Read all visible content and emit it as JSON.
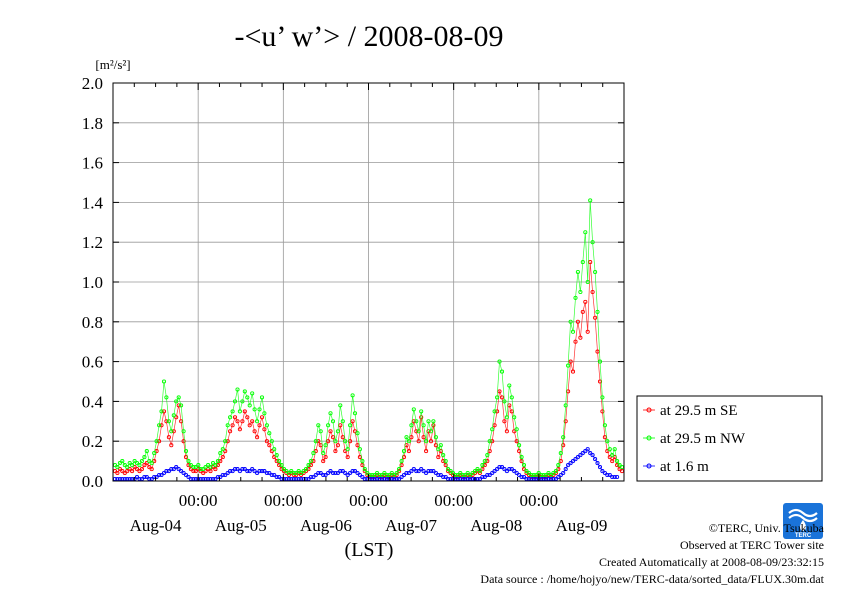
{
  "chart_data": {
    "type": "line",
    "title": "-<u’ w’> / 2008-08-09",
    "y_unit": "[m²/s²]",
    "ylim": [
      0.0,
      2.0
    ],
    "y_ticks": [
      "0.0",
      "0.2",
      "0.4",
      "0.6",
      "0.8",
      "1.0",
      "1.2",
      "1.4",
      "1.6",
      "1.8",
      "2.0"
    ],
    "x_tick_time": "00:00",
    "x_day_labels": [
      "Aug-04",
      "Aug-05",
      "Aug-06",
      "Aug-07",
      "Aug-08",
      "Aug-09"
    ],
    "xlabel": "(LST)",
    "grid": true,
    "legend_position": "right",
    "series": [
      {
        "name": "at 29.5 m SE",
        "color": "#ff0000",
        "values": [
          0.05,
          0.04,
          0.06,
          0.05,
          0.04,
          0.05,
          0.06,
          0.05,
          0.07,
          0.06,
          0.05,
          0.06,
          0.08,
          0.09,
          0.07,
          0.06,
          0.1,
          0.15,
          0.2,
          0.28,
          0.35,
          0.3,
          0.22,
          0.18,
          0.25,
          0.32,
          0.38,
          0.3,
          0.2,
          0.12,
          0.08,
          0.06,
          0.05,
          0.05,
          0.06,
          0.05,
          0.04,
          0.05,
          0.06,
          0.05,
          0.07,
          0.06,
          0.08,
          0.1,
          0.12,
          0.15,
          0.2,
          0.25,
          0.28,
          0.32,
          0.3,
          0.26,
          0.3,
          0.35,
          0.32,
          0.28,
          0.3,
          0.25,
          0.22,
          0.28,
          0.32,
          0.26,
          0.2,
          0.18,
          0.15,
          0.12,
          0.1,
          0.08,
          0.06,
          0.05,
          0.04,
          0.03,
          0.04,
          0.03,
          0.03,
          0.04,
          0.03,
          0.04,
          0.05,
          0.06,
          0.08,
          0.1,
          0.15,
          0.2,
          0.18,
          0.1,
          0.12,
          0.2,
          0.25,
          0.22,
          0.15,
          0.18,
          0.28,
          0.22,
          0.15,
          0.12,
          0.2,
          0.3,
          0.25,
          0.18,
          0.12,
          0.08,
          0.05,
          0.03,
          0.02,
          0.02,
          0.02,
          0.03,
          0.02,
          0.02,
          0.03,
          0.02,
          0.02,
          0.03,
          0.02,
          0.03,
          0.05,
          0.08,
          0.12,
          0.18,
          0.15,
          0.22,
          0.3,
          0.25,
          0.2,
          0.32,
          0.22,
          0.15,
          0.25,
          0.2,
          0.28,
          0.18,
          0.12,
          0.15,
          0.1,
          0.08,
          0.05,
          0.04,
          0.03,
          0.02,
          0.02,
          0.03,
          0.02,
          0.02,
          0.03,
          0.02,
          0.03,
          0.04,
          0.05,
          0.04,
          0.06,
          0.08,
          0.1,
          0.15,
          0.2,
          0.28,
          0.35,
          0.45,
          0.42,
          0.3,
          0.25,
          0.38,
          0.35,
          0.25,
          0.2,
          0.15,
          0.1,
          0.06,
          0.04,
          0.03,
          0.02,
          0.02,
          0.02,
          0.03,
          0.02,
          0.02,
          0.02,
          0.03,
          0.02,
          0.03,
          0.04,
          0.06,
          0.1,
          0.18,
          0.3,
          0.45,
          0.6,
          0.55,
          0.7,
          0.8,
          0.72,
          0.85,
          0.9,
          0.75,
          1.1,
          0.95,
          0.82,
          0.65,
          0.5,
          0.35,
          0.22,
          0.15,
          0.12,
          0.1,
          0.12,
          0.08,
          0.06,
          0.05
        ]
      },
      {
        "name": "at 29.5 m NW",
        "color": "#00ff00",
        "values": [
          0.08,
          0.07,
          0.09,
          0.1,
          0.08,
          0.07,
          0.09,
          0.08,
          0.1,
          0.09,
          0.08,
          0.1,
          0.12,
          0.15,
          0.1,
          0.09,
          0.14,
          0.2,
          0.28,
          0.35,
          0.5,
          0.42,
          0.3,
          0.25,
          0.33,
          0.4,
          0.42,
          0.38,
          0.25,
          0.15,
          0.1,
          0.08,
          0.07,
          0.07,
          0.08,
          0.06,
          0.06,
          0.07,
          0.08,
          0.07,
          0.09,
          0.08,
          0.1,
          0.14,
          0.16,
          0.2,
          0.28,
          0.32,
          0.35,
          0.4,
          0.46,
          0.35,
          0.4,
          0.45,
          0.42,
          0.38,
          0.44,
          0.36,
          0.3,
          0.36,
          0.42,
          0.34,
          0.28,
          0.24,
          0.2,
          0.16,
          0.13,
          0.1,
          0.08,
          0.06,
          0.05,
          0.04,
          0.05,
          0.04,
          0.04,
          0.05,
          0.04,
          0.05,
          0.06,
          0.08,
          0.1,
          0.14,
          0.2,
          0.28,
          0.25,
          0.14,
          0.18,
          0.28,
          0.34,
          0.3,
          0.2,
          0.25,
          0.38,
          0.3,
          0.2,
          0.16,
          0.28,
          0.43,
          0.34,
          0.24,
          0.16,
          0.1,
          0.06,
          0.04,
          0.03,
          0.03,
          0.03,
          0.04,
          0.03,
          0.03,
          0.04,
          0.03,
          0.03,
          0.04,
          0.03,
          0.04,
          0.06,
          0.1,
          0.15,
          0.22,
          0.2,
          0.28,
          0.36,
          0.3,
          0.25,
          0.35,
          0.28,
          0.2,
          0.3,
          0.25,
          0.3,
          0.22,
          0.16,
          0.18,
          0.13,
          0.1,
          0.06,
          0.05,
          0.04,
          0.03,
          0.03,
          0.04,
          0.03,
          0.03,
          0.04,
          0.03,
          0.04,
          0.05,
          0.06,
          0.05,
          0.08,
          0.1,
          0.13,
          0.2,
          0.26,
          0.35,
          0.42,
          0.6,
          0.55,
          0.4,
          0.32,
          0.48,
          0.42,
          0.32,
          0.26,
          0.18,
          0.12,
          0.08,
          0.05,
          0.04,
          0.03,
          0.03,
          0.03,
          0.04,
          0.03,
          0.03,
          0.03,
          0.04,
          0.03,
          0.04,
          0.05,
          0.08,
          0.14,
          0.22,
          0.38,
          0.58,
          0.8,
          0.75,
          0.92,
          1.05,
          0.95,
          1.1,
          1.25,
          1.0,
          1.41,
          1.2,
          1.05,
          0.85,
          0.6,
          0.42,
          0.28,
          0.2,
          0.16,
          0.13,
          0.16,
          0.1,
          0.08,
          0.07
        ]
      },
      {
        "name": "at 1.6 m",
        "color": "#0000ff",
        "values": [
          0.01,
          0.01,
          0.01,
          0.01,
          0.01,
          0.01,
          0.01,
          0.01,
          0.01,
          0.02,
          0.01,
          0.01,
          0.02,
          0.02,
          0.01,
          0.01,
          0.02,
          0.02,
          0.03,
          0.03,
          0.04,
          0.05,
          0.05,
          0.06,
          0.06,
          0.07,
          0.06,
          0.05,
          0.04,
          0.03,
          0.02,
          0.01,
          0.01,
          0.01,
          0.01,
          0.01,
          0.01,
          0.01,
          0.01,
          0.01,
          0.01,
          0.01,
          0.02,
          0.02,
          0.03,
          0.03,
          0.04,
          0.05,
          0.05,
          0.06,
          0.06,
          0.05,
          0.06,
          0.06,
          0.05,
          0.05,
          0.06,
          0.05,
          0.04,
          0.05,
          0.05,
          0.05,
          0.04,
          0.04,
          0.03,
          0.03,
          0.02,
          0.02,
          0.01,
          0.01,
          0.01,
          0.01,
          0.01,
          0.01,
          0.01,
          0.01,
          0.01,
          0.01,
          0.01,
          0.01,
          0.02,
          0.02,
          0.03,
          0.04,
          0.04,
          0.03,
          0.03,
          0.04,
          0.05,
          0.04,
          0.04,
          0.04,
          0.05,
          0.05,
          0.04,
          0.03,
          0.04,
          0.05,
          0.05,
          0.04,
          0.03,
          0.02,
          0.01,
          0.01,
          0.01,
          0.01,
          0.01,
          0.01,
          0.01,
          0.01,
          0.01,
          0.01,
          0.01,
          0.01,
          0.01,
          0.01,
          0.01,
          0.02,
          0.03,
          0.04,
          0.04,
          0.05,
          0.06,
          0.05,
          0.05,
          0.06,
          0.05,
          0.04,
          0.05,
          0.05,
          0.05,
          0.04,
          0.03,
          0.03,
          0.02,
          0.02,
          0.01,
          0.01,
          0.01,
          0.01,
          0.01,
          0.01,
          0.01,
          0.01,
          0.01,
          0.01,
          0.01,
          0.01,
          0.01,
          0.01,
          0.02,
          0.02,
          0.03,
          0.03,
          0.04,
          0.05,
          0.06,
          0.07,
          0.07,
          0.06,
          0.05,
          0.06,
          0.06,
          0.05,
          0.04,
          0.03,
          0.02,
          0.02,
          0.01,
          0.01,
          0.01,
          0.01,
          0.01,
          0.01,
          0.01,
          0.01,
          0.01,
          0.01,
          0.01,
          0.01,
          0.01,
          0.02,
          0.03,
          0.04,
          0.06,
          0.08,
          0.09,
          0.1,
          0.11,
          0.12,
          0.13,
          0.14,
          0.15,
          0.16,
          0.14,
          0.13,
          0.11,
          0.09,
          0.07,
          0.05,
          0.04,
          0.03,
          0.03,
          0.02,
          0.02,
          0.02
        ]
      }
    ]
  },
  "credits": {
    "copyright": "©TERC, Univ. Tsukuba",
    "observed": "Observed at TERC Tower site",
    "created": "Created Automatically at 2008-08-09/23:32:15",
    "source": "Data source : /home/hojyo/new/TERC-data/sorted_data/FLUX.30m.dat"
  },
  "logo": {
    "name": "terc-logo",
    "text": "TERC",
    "color": "#1a73d9"
  }
}
